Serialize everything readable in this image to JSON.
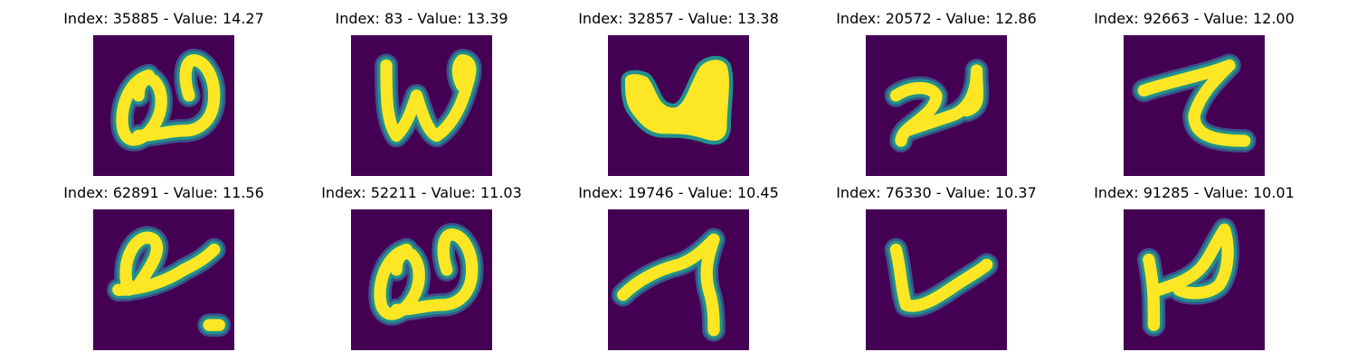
{
  "colors": {
    "background": "#440154",
    "stroke_mid": "#21918c",
    "stroke_edge": "#3b528b",
    "stroke_core": "#fde725"
  },
  "panels": [
    {
      "title": "Index: 35885 - Value: 14.27",
      "glyph": "handwritten-a-with-loop"
    },
    {
      "title": "Index: 83 - Value: 13.39",
      "glyph": "handwritten-w"
    },
    {
      "title": "Index: 32857 - Value: 13.38",
      "glyph": "blob-u-shape"
    },
    {
      "title": "Index: 20572 - Value: 12.86",
      "glyph": "handwritten-2-scribble"
    },
    {
      "title": "Index: 92663 - Value: 12.00",
      "glyph": "handwritten-z-like"
    },
    {
      "title": "Index: 62891 - Value: 11.56",
      "glyph": "handwritten-a-with-tail"
    },
    {
      "title": "Index: 52211 - Value: 11.03",
      "glyph": "handwritten-a-with-loop"
    },
    {
      "title": "Index: 19746 - Value: 10.45",
      "glyph": "handwritten-7-like"
    },
    {
      "title": "Index: 76330 - Value: 10.37",
      "glyph": "handwritten-v-check"
    },
    {
      "title": "Index: 91285 - Value: 10.01",
      "glyph": "handwritten-n-like"
    }
  ]
}
